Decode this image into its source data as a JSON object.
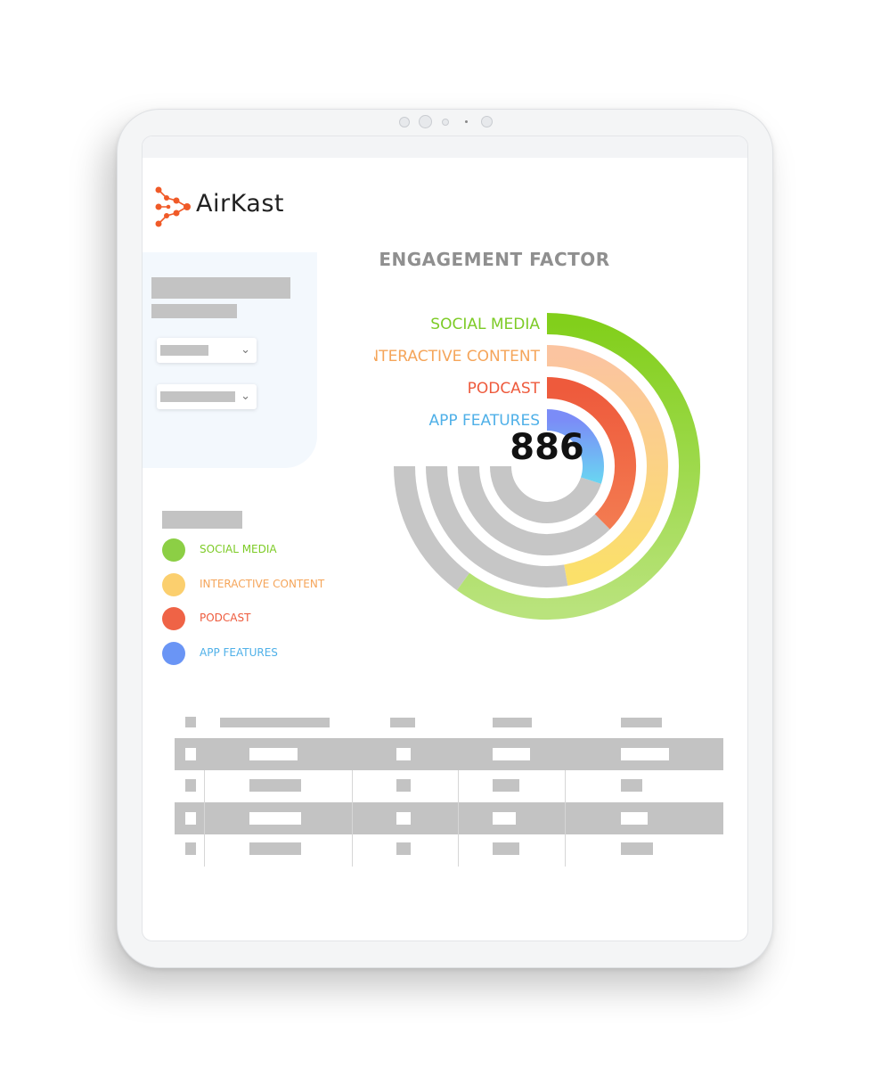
{
  "brand": {
    "name": "AirKast",
    "color": "#f05a28"
  },
  "chart": {
    "title": "ENGAGEMENT FACTOR",
    "center_value": "886"
  },
  "chart_data": {
    "type": "radial_bar",
    "title": "ENGAGEMENT FACTOR",
    "center_value": 886,
    "series": [
      {
        "name": "SOCIAL MEDIA",
        "value": 0.8,
        "color_start": "#82cf1b",
        "color_end": "#b9e37c"
      },
      {
        "name": "INTERACTIVE CONTENT",
        "value": 0.63,
        "color_start": "#fbc4a0",
        "color_end": "#fbe06a"
      },
      {
        "name": "PODCAST",
        "value": 0.5,
        "color_start": "#ee5a3c",
        "color_end": "#f37a50"
      },
      {
        "name": "APP FEATURES",
        "value": 0.4,
        "color_start": "#7b8cf7",
        "color_end": "#6ad3f2"
      }
    ],
    "track_color": "#c6c6c6"
  },
  "legend": [
    {
      "label": "SOCIAL MEDIA",
      "color": "#7dcb26",
      "dot": "#8ccf45"
    },
    {
      "label": "INTERACTIVE CONTENT",
      "color": "#f5a55a",
      "dot": "#fbcf6e"
    },
    {
      "label": "PODCAST",
      "color": "#ee5a3c",
      "dot": "#ef6346"
    },
    {
      "label": "APP FEATURES",
      "color": "#4fb0e8",
      "dot": "#6a95f5"
    }
  ],
  "chart_labels": [
    {
      "label": "SOCIAL MEDIA",
      "color": "#7dcb26"
    },
    {
      "label": "INTERACTIVE CONTENT",
      "color": "#f5a55a"
    },
    {
      "label": "PODCAST",
      "color": "#ee5a3c"
    },
    {
      "label": "APP FEATURES",
      "color": "#4fb0e8"
    }
  ],
  "icons": {
    "logo": "airkast-dots-logo",
    "dropdown": "chevron-down-icon"
  }
}
